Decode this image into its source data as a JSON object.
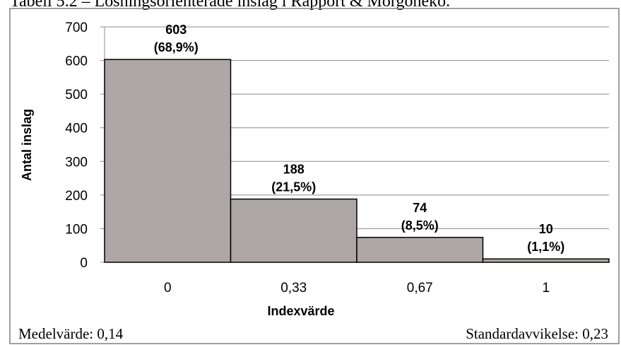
{
  "header": {
    "title_fragment": "Tabell 5.2 – Lösningsorienterade inslag i Rapport & Morgoneko."
  },
  "footer": {
    "mean": "Medelvärde: 0,14",
    "std": "Standardavvikelse: 0,23"
  },
  "colors": {
    "bar": "#ada7a5",
    "bar_stroke": "#000000",
    "grid": "#8c8c8c",
    "border": "#808080"
  },
  "chart_data": {
    "type": "bar",
    "categories": [
      "0",
      "0,33",
      "0,67",
      "1"
    ],
    "values": [
      603,
      188,
      74,
      10
    ],
    "data_labels": [
      [
        "603",
        "(68,9%)"
      ],
      [
        "188",
        "(21,5%)"
      ],
      [
        "74",
        "(8,5%)"
      ],
      [
        "10",
        "(1,1%)"
      ]
    ],
    "xlabel": "Indexvärde",
    "ylabel": "Antal inslag",
    "ylim": [
      0,
      700
    ],
    "yticks": [
      0,
      100,
      200,
      300,
      400,
      500,
      600,
      700
    ],
    "grid": true,
    "legend": "none"
  }
}
